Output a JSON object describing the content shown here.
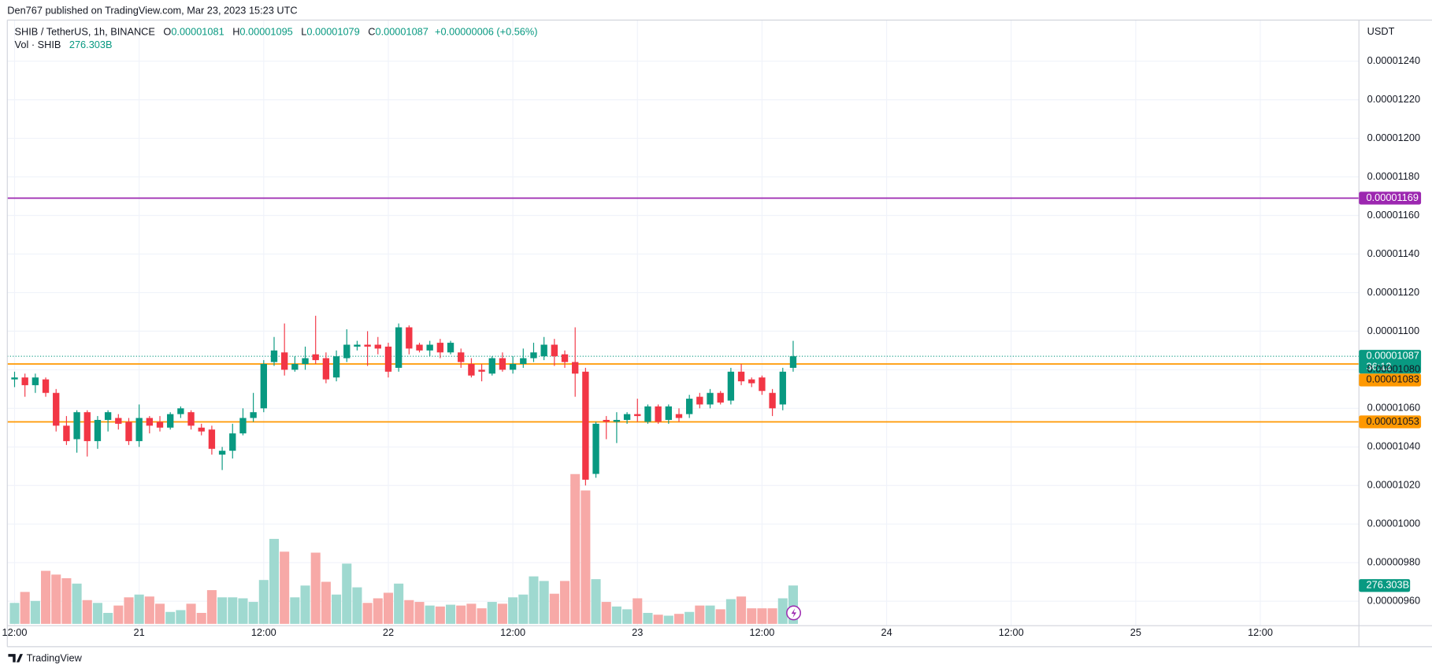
{
  "header": {
    "publisher": "Den767 published on TradingView.com, Mar 23, 2023 15:23 UTC",
    "footer": "TradingView"
  },
  "chart_data": {
    "type": "candlestick",
    "symbol": "SHIB / TetherUS, 1h, BINANCE",
    "ohlc_labels": [
      "O",
      "H",
      "L",
      "C"
    ],
    "change": "+0.00000006 (+0.56%)",
    "y_unit": "USDT",
    "countdown": "36:12",
    "colors": {
      "up": "#089981",
      "down": "#f23645"
    },
    "x": [
      12,
      13,
      14,
      15,
      16,
      17,
      18,
      19,
      20,
      21,
      22,
      23,
      24,
      25,
      26,
      27,
      28,
      29,
      30,
      31,
      32,
      33,
      34,
      35,
      36,
      37,
      38,
      39,
      40,
      41,
      42,
      43,
      44,
      45,
      46,
      47,
      48,
      49,
      50,
      51,
      52,
      53,
      54,
      55,
      56,
      57,
      58,
      59,
      60,
      61,
      62,
      63,
      64,
      65,
      66,
      67,
      68,
      69,
      70,
      71,
      72,
      73,
      74,
      75,
      76,
      77,
      78,
      79,
      80,
      81,
      82,
      83,
      84,
      85,
      86,
      87
    ],
    "open": [
      1.075e-05,
      1.076e-05,
      1.072e-05,
      1.075e-05,
      1.068e-05,
      1.051e-05,
      1.044e-05,
      1.058e-05,
      1.043e-05,
      1.054e-05,
      1.055e-05,
      1.053e-05,
      1.043e-05,
      1.055e-05,
      1.053e-05,
      1.05e-05,
      1.057e-05,
      1.058e-05,
      1.05e-05,
      1.049e-05,
      1.036e-05,
      1.038e-05,
      1.047e-05,
      1.055e-05,
      1.06e-05,
      1.084e-05,
      1.089e-05,
      1.08e-05,
      1.083e-05,
      1.088e-05,
      1.086e-05,
      1.076e-05,
      1.086e-05,
      1.092e-05,
      1.093e-05,
      1.093e-05,
      1.092e-05,
      1.081e-05,
      1.102e-05,
      1.093e-05,
      1.09e-05,
      1.094e-05,
      1.089e-05,
      1.089e-05,
      1.083e-05,
      1.08e-05,
      1.078e-05,
      1.086e-05,
      1.08e-05,
      1.083e-05,
      1.086e-05,
      1.087e-05,
      1.093e-05,
      1.088e-05,
      1.084e-05,
      1.079e-05,
      1.026e-05,
      1.054e-05,
      1.053e-05,
      1.054e-05,
      1.057e-05,
      1.053e-05,
      1.061e-05,
      1.054e-05,
      1.057e-05,
      1.057e-05,
      1.066e-05,
      1.062e-05,
      1.068e-05,
      1.064e-05,
      1.079e-05,
      1.075e-05,
      1.076e-05,
      1.068e-05,
      1.062e-05,
      1.081e-05
    ],
    "high": [
      1.079e-05,
      1.078e-05,
      1.078e-05,
      1.076e-05,
      1.07e-05,
      1.056e-05,
      1.059e-05,
      1.059e-05,
      1.056e-05,
      1.059e-05,
      1.057e-05,
      1.055e-05,
      1.062e-05,
      1.056e-05,
      1.056e-05,
      1.058e-05,
      1.061e-05,
      1.059e-05,
      1.052e-05,
      1.051e-05,
      1.04e-05,
      1.052e-05,
      1.06e-05,
      1.068e-05,
      1.085e-05,
      1.097e-05,
      1.104e-05,
      1.087e-05,
      1.092e-05,
      1.108e-05,
      1.089e-05,
      1.09e-05,
      1.101e-05,
      1.095e-05,
      1.1e-05,
      1.097e-05,
      1.094e-05,
      1.104e-05,
      1.103e-05,
      1.094e-05,
      1.095e-05,
      1.096e-05,
      1.095e-05,
      1.091e-05,
      1.086e-05,
      1.083e-05,
      1.087e-05,
      1.089e-05,
      1.087e-05,
      1.091e-05,
      1.094e-05,
      1.097e-05,
      1.096e-05,
      1.09e-05,
      1.102e-05,
      1.081e-05,
      1.053e-05,
      1.056e-05,
      1.058e-05,
      1.058e-05,
      1.065e-05,
      1.062e-05,
      1.062e-05,
      1.062e-05,
      1.06e-05,
      1.067e-05,
      1.068e-05,
      1.07e-05,
      1.069e-05,
      1.081e-05,
      1.083e-05,
      1.076e-05,
      1.077e-05,
      1.07e-05,
      1.081e-05,
      1.095e-05
    ],
    "low": [
      1.071e-05,
      1.066e-05,
      1.068e-05,
      1.066e-05,
      1.048e-05,
      1.041e-05,
      1.037e-05,
      1.035e-05,
      1.039e-05,
      1.048e-05,
      1.049e-05,
      1.041e-05,
      1.04e-05,
      1.047e-05,
      1.048e-05,
      1.049e-05,
      1.055e-05,
      1.049e-05,
      1.046e-05,
      1.036e-05,
      1.028e-05,
      1.034e-05,
      1.046e-05,
      1.053e-05,
      1.058e-05,
      1.082e-05,
      1.077e-05,
      1.079e-05,
      1.08e-05,
      1.083e-05,
      1.073e-05,
      1.074e-05,
      1.084e-05,
      1.09e-05,
      1.082e-05,
      1.088e-05,
      1.076e-05,
      1.079e-05,
      1.088e-05,
      1.089e-05,
      1.087e-05,
      1.086e-05,
      1.088e-05,
      1.081e-05,
      1.076e-05,
      1.074e-05,
      1.077e-05,
      1.079e-05,
      1.078e-05,
      1.081e-05,
      1.084e-05,
      1.085e-05,
      1.082e-05,
      1.081e-05,
      1.066e-05,
      1.02e-05,
      1.024e-05,
      1.044e-05,
      1.042e-05,
      1.052e-05,
      1.053e-05,
      1.052e-05,
      1.052e-05,
      1.052e-05,
      1.053e-05,
      1.055e-05,
      1.06e-05,
      1.06e-05,
      1.062e-05,
      1.062e-05,
      1.072e-05,
      1.071e-05,
      1.067e-05,
      1.056e-05,
      1.059e-05,
      1.079e-05
    ],
    "close": [
      1.076e-05,
      1.072e-05,
      1.076e-05,
      1.068e-05,
      1.051e-05,
      1.043e-05,
      1.058e-05,
      1.043e-05,
      1.054e-05,
      1.058e-05,
      1.052e-05,
      1.043e-05,
      1.055e-05,
      1.051e-05,
      1.05e-05,
      1.057e-05,
      1.06e-05,
      1.051e-05,
      1.048e-05,
      1.039e-05,
      1.038e-05,
      1.047e-05,
      1.055e-05,
      1.058e-05,
      1.083e-05,
      1.09e-05,
      1.08e-05,
      1.083e-05,
      1.086e-05,
      1.085e-05,
      1.075e-05,
      1.087e-05,
      1.093e-05,
      1.093e-05,
      1.092e-05,
      1.091e-05,
      1.079e-05,
      1.102e-05,
      1.091e-05,
      1.09e-05,
      1.093e-05,
      1.089e-05,
      1.094e-05,
      1.084e-05,
      1.077e-05,
      1.079e-05,
      1.086e-05,
      1.08e-05,
      1.083e-05,
      1.086e-05,
      1.089e-05,
      1.093e-05,
      1.087e-05,
      1.084e-05,
      1.078e-05,
      1.023e-05,
      1.052e-05,
      1.053e-05,
      1.054e-05,
      1.057e-05,
      1.056e-05,
      1.061e-05,
      1.053e-05,
      1.061e-05,
      1.055e-05,
      1.065e-05,
      1.062e-05,
      1.068e-05,
      1.063e-05,
      1.079e-05,
      1.074e-05,
      1.073e-05,
      1.069e-05,
      1.06e-05,
      1.079e-05,
      1.087e-05
    ],
    "volume": {
      "name": "Vol · SHIB",
      "up_color": "#9fd9d0",
      "down_color": "#f7a9a7",
      "value_label": "276.303B",
      "values": [
        151,
        230,
        165,
        382,
        355,
        329,
        290,
        171,
        151,
        79,
        132,
        191,
        211,
        197,
        145,
        86,
        99,
        145,
        79,
        243,
        191,
        191,
        184,
        158,
        316,
        612,
        520,
        191,
        276,
        513,
        303,
        211,
        434,
        263,
        151,
        184,
        224,
        290,
        171,
        158,
        132,
        125,
        138,
        132,
        145,
        112,
        158,
        145,
        191,
        211,
        342,
        309,
        217,
        309,
        1079,
        961,
        322,
        158,
        125,
        105,
        184,
        79,
        66,
        59,
        72,
        86,
        132,
        132,
        105,
        178,
        197,
        112,
        112,
        112,
        184,
        276.303
      ]
    },
    "hlines": [
      {
        "value": 1.169e-05,
        "color": "#9c27b0"
      },
      {
        "value": 1.083e-05,
        "color": "#ff9800"
      },
      {
        "value": 1.053e-05,
        "color": "#ff9800"
      }
    ],
    "xlim": [
      11.3,
      141.5
    ],
    "xticks": [
      {
        "value": 12,
        "label": "12:00"
      },
      {
        "value": 24,
        "label": "21"
      },
      {
        "value": 36,
        "label": "12:00"
      },
      {
        "value": 48,
        "label": "22"
      },
      {
        "value": 60,
        "label": "12:00"
      },
      {
        "value": 72,
        "label": "23"
      },
      {
        "value": 84,
        "label": "12:00"
      },
      {
        "value": 96,
        "label": "24"
      },
      {
        "value": 108,
        "label": "12:00"
      },
      {
        "value": 120,
        "label": "25"
      },
      {
        "value": 132,
        "label": "12:00"
      }
    ],
    "ylim": [
      9.473e-06,
      1.2613e-05
    ],
    "yticks": [
      {
        "value": 9.6e-06,
        "label": "0.00000960"
      },
      {
        "value": 9.8e-06,
        "label": "0.00000980"
      },
      {
        "value": 1e-05,
        "label": "0.00001000"
      },
      {
        "value": 1.02e-05,
        "label": "0.00001020"
      },
      {
        "value": 1.04e-05,
        "label": "0.00001040"
      },
      {
        "value": 1.06e-05,
        "label": "0.00001060"
      },
      {
        "value": 1.08e-05,
        "label": "0.00001080"
      },
      {
        "value": 1.1e-05,
        "label": "0.00001100"
      },
      {
        "value": 1.12e-05,
        "label": "0.00001120"
      },
      {
        "value": 1.14e-05,
        "label": "0.00001140"
      },
      {
        "value": 1.16e-05,
        "label": "0.00001160"
      },
      {
        "value": 1.18e-05,
        "label": "0.00001180"
      },
      {
        "value": 1.2e-05,
        "label": "0.00001200"
      },
      {
        "value": 1.22e-05,
        "label": "0.00001220"
      },
      {
        "value": 1.24e-05,
        "label": "0.00001240"
      }
    ],
    "grid": true
  }
}
